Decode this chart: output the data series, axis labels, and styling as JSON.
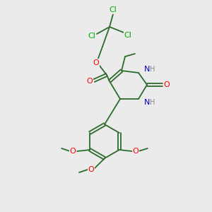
{
  "background_color": "#ebebeb",
  "bond_color": "#2d6b2d",
  "atom_colors": {
    "O": "#ff0000",
    "N": "#0000bb",
    "Cl": "#00aa00",
    "H": "#888888",
    "C": "#2d6b2d"
  }
}
